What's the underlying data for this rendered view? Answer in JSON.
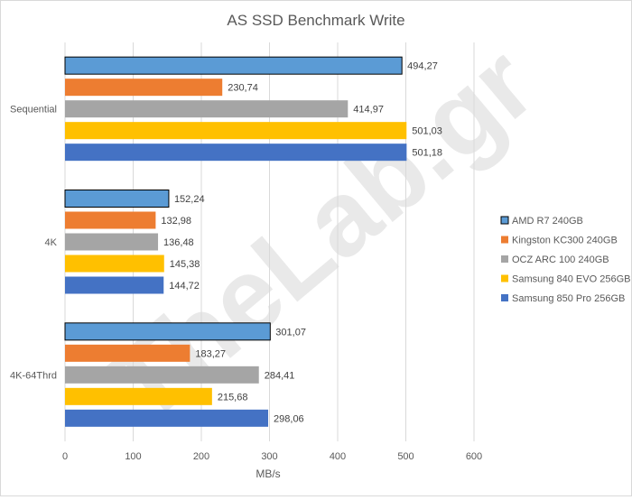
{
  "chart_data": {
    "type": "bar",
    "orientation": "horizontal",
    "title": "AS SSD Benchmark Write",
    "xlabel": "MB/s",
    "ylabel": "",
    "categories": [
      "Sequential",
      "4K",
      "4K-64Thrd"
    ],
    "xlim": [
      0,
      600
    ],
    "xticks": [
      0,
      100,
      200,
      300,
      400,
      500,
      600
    ],
    "grid": true,
    "legend_position": "right",
    "series": [
      {
        "name": "AMD R7 240GB",
        "color": "#5b9bd5",
        "outlined": true,
        "values": [
          494.27,
          152.24,
          301.07
        ],
        "labels": [
          "494,27",
          "152,24",
          "301,07"
        ]
      },
      {
        "name": "Kingston KC300 240GB",
        "color": "#ed7d31",
        "values": [
          230.74,
          132.98,
          183.27
        ],
        "labels": [
          "230,74",
          "132,98",
          "183,27"
        ]
      },
      {
        "name": "OCZ ARC 100 240GB",
        "color": "#a5a5a5",
        "values": [
          414.97,
          136.48,
          284.41
        ],
        "labels": [
          "414,97",
          "136,48",
          "284,41"
        ]
      },
      {
        "name": "Samsung 840 EVO 256GB",
        "color": "#ffc000",
        "values": [
          501.03,
          145.38,
          215.68
        ],
        "labels": [
          "501,03",
          "145,38",
          "215,68"
        ]
      },
      {
        "name": "Samsung 850 Pro 256GB",
        "color": "#4472c4",
        "values": [
          501.18,
          144.72,
          298.06
        ],
        "labels": [
          "501,18",
          "144,72",
          "298,06"
        ]
      }
    ],
    "watermark": "TheLab.gr"
  }
}
